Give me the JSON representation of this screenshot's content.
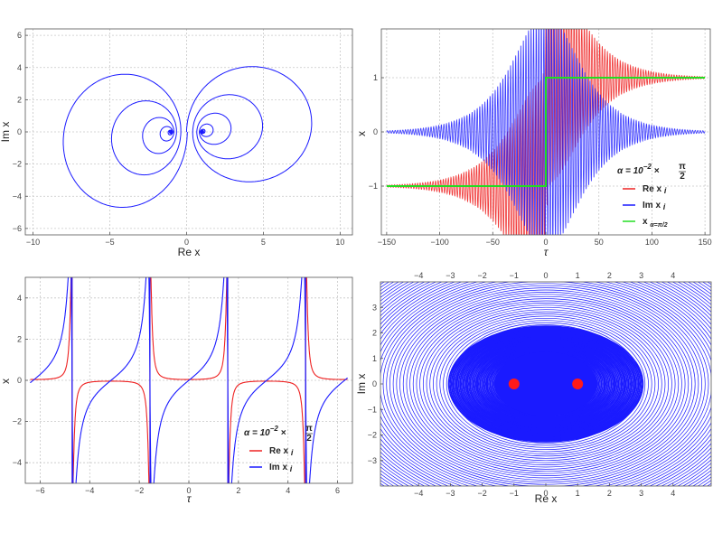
{
  "colors": {
    "blue": "#1a1aff",
    "red": "#ee2222",
    "green": "#22dd22",
    "dot": "#ff1a1a",
    "grid": "#c8c8c8"
  },
  "chart_data": [
    {
      "type": "line",
      "panel": "top-left",
      "description_series": "Complex trajectory x(τ) spiralling into two foci, forming a figure-eight",
      "xlabel": "Re x",
      "ylabel": "Im x",
      "xlim": [
        -10.5,
        10.8
      ],
      "ylim": [
        -6.4,
        6.4
      ],
      "xticks": [
        -10,
        -5,
        0,
        5,
        10
      ],
      "yticks": [
        -6,
        -4,
        -2,
        0,
        2,
        4,
        6
      ],
      "grid": true,
      "foci": [
        [
          -1,
          0
        ],
        [
          1,
          0
        ]
      ],
      "series": [
        {
          "color": "blue",
          "points": [
            [
              -1,
              0
            ],
            [
              -5,
              4.7
            ],
            [
              -10,
              0
            ],
            [
              -5,
              -5.3
            ],
            [
              0,
              0
            ],
            [
              5,
              -5.3
            ],
            [
              10,
              0
            ],
            [
              5,
              4.7
            ],
            [
              1,
              0
            ]
          ]
        }
      ]
    },
    {
      "type": "line",
      "panel": "top-right",
      "xlabel": "τ",
      "ylabel": "x",
      "xlim": [
        -155,
        155
      ],
      "ylim": [
        -1.9,
        1.9
      ],
      "xticks": [
        -150,
        -100,
        -50,
        0,
        50,
        100,
        150
      ],
      "yticks": [
        -1,
        0,
        1
      ],
      "grid": true,
      "legend": {
        "title_prefix": "α = 10",
        "title_exp": "−2",
        "title_mult": "×",
        "title_num": "π",
        "title_den": "2",
        "placement": "right"
      },
      "series": [
        {
          "name": "Re x",
          "subscript": "i",
          "color": "red",
          "shape": "step -1 to +1 with oscillation growing near τ=0"
        },
        {
          "name": "Im x",
          "subscript": "i",
          "color": "blue",
          "shape": "oscillation around 0 with amplitude growing near τ=0"
        },
        {
          "name": "x",
          "subscript": "α=π/2",
          "color": "green",
          "x": [
            -150,
            0,
            0,
            150
          ],
          "y": [
            -1,
            -1,
            1,
            1
          ]
        }
      ]
    },
    {
      "type": "line",
      "panel": "bottom-left",
      "xlabel": "τ",
      "ylabel": "x",
      "xlim": [
        -6.6,
        6.6
      ],
      "ylim": [
        -5,
        5
      ],
      "xticks": [
        -6,
        -4,
        -2,
        0,
        2,
        4,
        6
      ],
      "yticks": [
        -4,
        -2,
        0,
        2,
        4
      ],
      "grid": true,
      "poles": [
        -4.71,
        -1.57,
        1.57,
        4.71
      ],
      "legend": {
        "title_prefix": "α = 10",
        "title_exp": "−2",
        "title_mult": "×",
        "title_num": "π",
        "title_den": "2",
        "placement": "bottom-right"
      },
      "series": [
        {
          "name": "Re x",
          "subscript": "i",
          "color": "red",
          "shape": "sharp resonance peaks alternating sign at the poles"
        },
        {
          "name": "Im x",
          "subscript": "i",
          "color": "blue",
          "shape": "tan-like branches between the poles"
        }
      ]
    },
    {
      "type": "line",
      "panel": "bottom-right",
      "xlabel": "Re x",
      "ylabel": "Im x",
      "xlim": [
        -5.2,
        5.2
      ],
      "ylim": [
        -4.0,
        4.0
      ],
      "xticks": [
        -4,
        -3,
        -2,
        -1,
        0,
        1,
        2,
        3,
        4
      ],
      "yticks": [
        -3,
        -2,
        -1,
        0,
        1,
        2,
        3
      ],
      "grid": false,
      "points": [
        [
          -1,
          0
        ],
        [
          1,
          0
        ]
      ],
      "series": [
        {
          "color": "blue",
          "shape": "dense family of orbits around two points"
        }
      ]
    }
  ]
}
